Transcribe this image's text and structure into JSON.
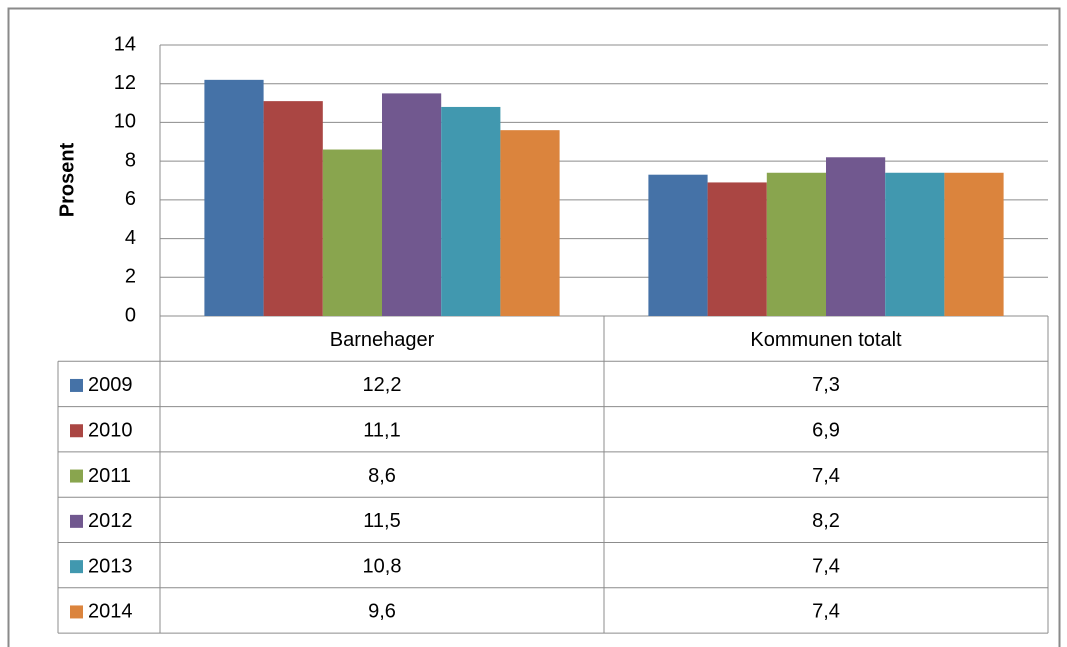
{
  "chart_data": {
    "type": "bar",
    "y_label": "Prosent",
    "categories": [
      "Barnehager",
      "Kommunen totalt"
    ],
    "series": [
      {
        "name": "2009",
        "color": "#4572a7",
        "values": [
          12.2,
          7.3
        ],
        "value_labels": [
          "12,2",
          "7,3"
        ]
      },
      {
        "name": "2010",
        "color": "#aa4643",
        "values": [
          11.1,
          6.9
        ],
        "value_labels": [
          "11,1",
          "6,9"
        ]
      },
      {
        "name": "2011",
        "color": "#89a54e",
        "values": [
          8.6,
          7.4
        ],
        "value_labels": [
          "8,6",
          "7,4"
        ]
      },
      {
        "name": "2012",
        "color": "#71588f",
        "values": [
          11.5,
          8.2
        ],
        "value_labels": [
          "11,5",
          "8,2"
        ]
      },
      {
        "name": "2013",
        "color": "#4198af",
        "values": [
          10.8,
          7.4
        ],
        "value_labels": [
          "10,8",
          "7,4"
        ]
      },
      {
        "name": "2014",
        "color": "#db843d",
        "values": [
          9.6,
          7.4
        ],
        "value_labels": [
          "9,6",
          "7,4"
        ]
      }
    ],
    "ylim": [
      0,
      14
    ],
    "yticks": [
      0,
      2,
      4,
      6,
      8,
      10,
      12,
      14
    ],
    "grid": true
  }
}
